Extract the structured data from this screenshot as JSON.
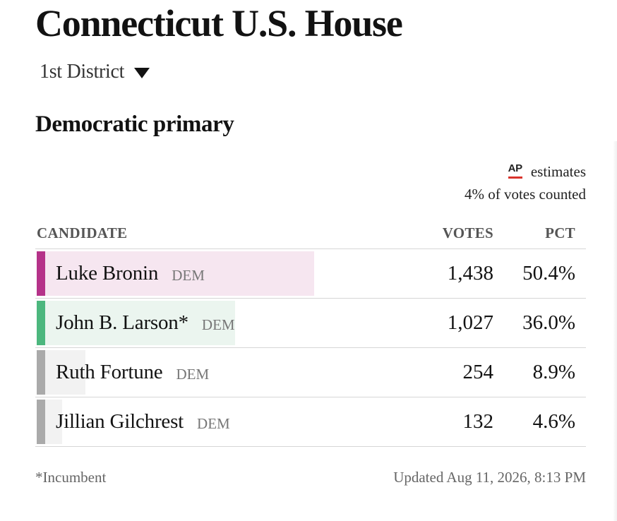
{
  "header": {
    "title": "Connecticut U.S. House",
    "district_selector": {
      "selected": "1st District",
      "icon": "triangle-down-icon"
    },
    "race_title": "Democratic primary"
  },
  "source": {
    "logo_text": "AP",
    "label": "estimates",
    "votes_counted": "4% of votes counted"
  },
  "table": {
    "columns": {
      "candidate": "CANDIDATE",
      "votes": "VOTES",
      "pct": "PCT"
    },
    "rows": [
      {
        "name": "Luke Bronin",
        "party": "DEM",
        "votes": "1,438",
        "pct": "50.4%",
        "share": 0.504,
        "color": "#b53289",
        "bar_color": "#f6e6f0"
      },
      {
        "name": "John B. Larson*",
        "party": "DEM",
        "votes": "1,027",
        "pct": "36.0%",
        "share": 0.36,
        "color": "#4cb77e",
        "bar_color": "#ebf5ef"
      },
      {
        "name": "Ruth Fortune",
        "party": "DEM",
        "votes": "254",
        "pct": "8.9%",
        "share": 0.089,
        "color": "#aaaaaa",
        "bar_color": "#f2f2f2"
      },
      {
        "name": "Jillian Gilchrest",
        "party": "DEM",
        "votes": "132",
        "pct": "4.6%",
        "share": 0.046,
        "color": "#aaaaaa",
        "bar_color": "#f2f2f2"
      }
    ]
  },
  "footer": {
    "footnote": "*Incumbent",
    "updated": "Updated Aug 11, 2026, 8:13 PM"
  },
  "colors": {
    "ap_red": "#d9332b",
    "text": "#121212",
    "muted": "#777777"
  }
}
